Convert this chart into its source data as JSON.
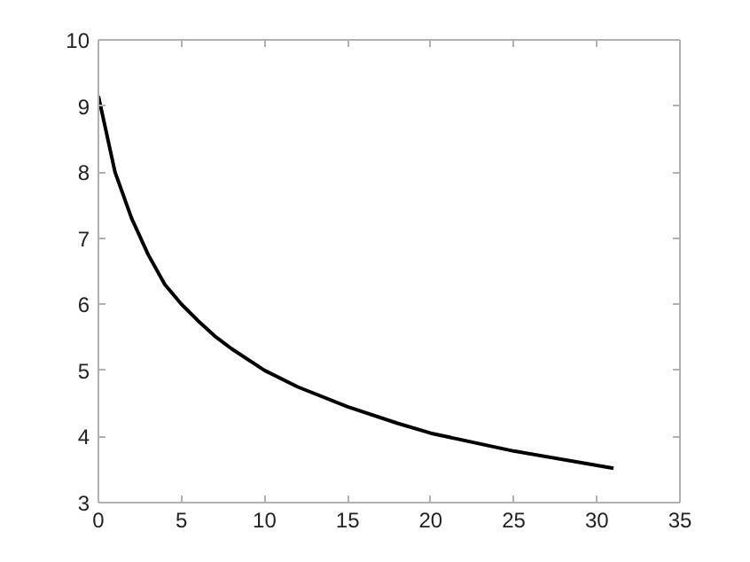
{
  "chart_data": {
    "type": "line",
    "x": [
      0,
      1,
      2,
      3,
      4,
      5,
      6,
      7,
      8,
      10,
      12,
      15,
      18,
      20,
      25,
      31
    ],
    "series": [
      {
        "color": "#000000",
        "values": [
          9.15,
          8.0,
          7.3,
          6.75,
          6.3,
          6.0,
          5.75,
          5.52,
          5.33,
          5.0,
          4.75,
          4.45,
          4.2,
          4.05,
          3.78,
          3.52
        ]
      }
    ],
    "xlim": [
      0,
      35
    ],
    "ylim": [
      3,
      10
    ],
    "xticks": [
      0,
      5,
      10,
      15,
      20,
      25,
      30,
      35
    ],
    "yticks": [
      3,
      4,
      5,
      6,
      7,
      8,
      9,
      10
    ],
    "grid": false,
    "marker": "none",
    "line_style": "solid"
  }
}
